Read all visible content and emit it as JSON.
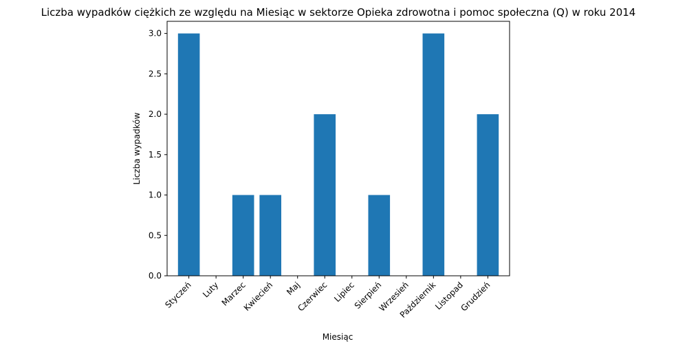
{
  "chart_data": {
    "type": "bar",
    "title": "Liczba wypadków ciężkich ze względu na Miesiąc w sektorze Opieka zdrowotna i pomoc społeczna (Q) w roku 2014",
    "xlabel": "Miesiąc",
    "ylabel": "Liczba wypadków",
    "categories": [
      "Styczeń",
      "Luty",
      "Marzec",
      "Kwiecień",
      "Maj",
      "Czerwiec",
      "Lipiec",
      "Sierpień",
      "Wrzesień",
      "Październik",
      "Listopad",
      "Grudzień"
    ],
    "values": [
      3,
      0,
      1,
      1,
      0,
      2,
      0,
      1,
      0,
      3,
      0,
      2
    ],
    "ylim": [
      0,
      3.15
    ],
    "yticks": [
      "0.0",
      "0.5",
      "1.0",
      "1.5",
      "2.0",
      "2.5",
      "3.0"
    ],
    "grid": false,
    "colors": {
      "bar": "#1f77b4"
    }
  }
}
